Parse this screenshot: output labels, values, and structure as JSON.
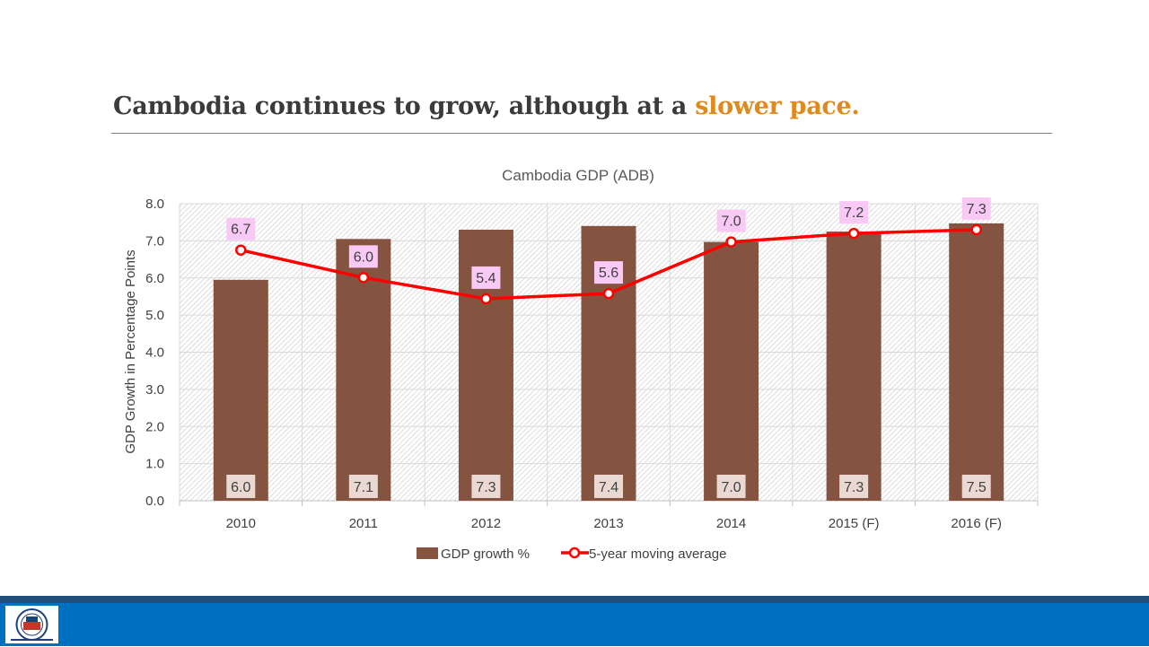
{
  "slide": {
    "title_main": "Cambodia continues to grow, although at a ",
    "title_accent": "slower pace."
  },
  "colors": {
    "title": "#3b3b3b",
    "accent": "#e08a1e",
    "bar": "#855440",
    "line": "#ff0000",
    "line_label_bg": "#f9c9f5",
    "bar_label_bg": "#ead9d2",
    "footer": "#0070c0",
    "footer_dark": "#1f4e79"
  },
  "chart_data": {
    "type": "bar",
    "title": "Cambodia GDP (ADB)",
    "ylabel": "GDP Growth in Percentage Points",
    "xlabel": "",
    "categories": [
      "2010",
      "2011",
      "2012",
      "2013",
      "2014",
      "2015 (F)",
      "2016 (F)"
    ],
    "ylim": [
      0,
      8
    ],
    "ytick_labels": [
      "0.0",
      "1.0",
      "2.0",
      "3.0",
      "4.0",
      "5.0",
      "6.0",
      "7.0",
      "8.0"
    ],
    "grid": true,
    "legend_position": "bottom",
    "series": [
      {
        "name": "GDP growth %",
        "type": "bar",
        "values": [
          5.95,
          7.05,
          7.3,
          7.4,
          6.97,
          7.25,
          7.47
        ],
        "labels": [
          "6.0",
          "7.1",
          "7.3",
          "7.4",
          "7.0",
          "7.3",
          "7.5"
        ]
      },
      {
        "name": "5-year moving average",
        "type": "line",
        "values": [
          6.75,
          6.01,
          5.44,
          5.58,
          6.97,
          7.2,
          7.3
        ],
        "labels": [
          "6.7",
          "6.0",
          "5.4",
          "5.6",
          "7.0",
          "7.2",
          "7.3"
        ]
      }
    ]
  }
}
